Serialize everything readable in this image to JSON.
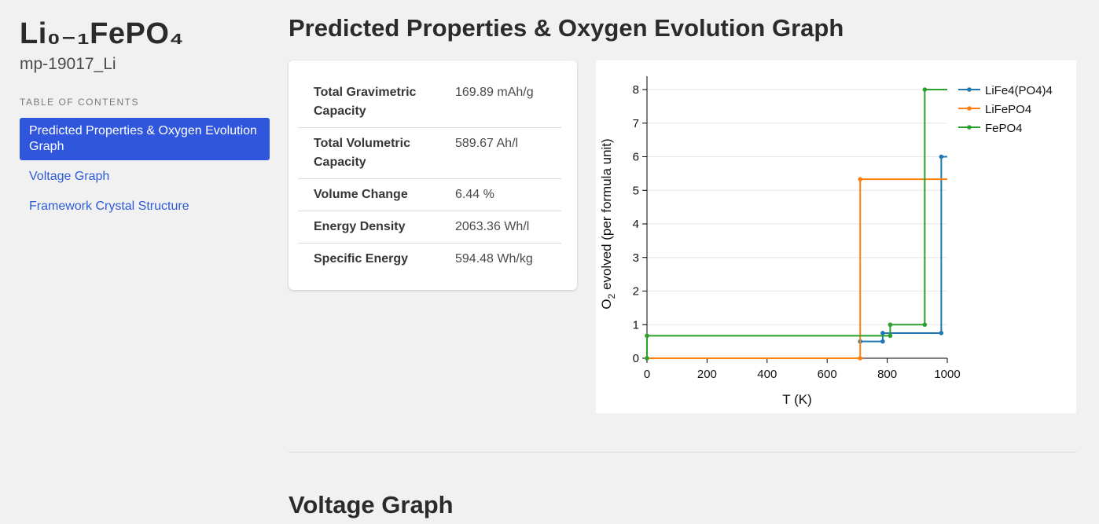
{
  "sidebar": {
    "title": "Li₀₋₁FePO₄",
    "material_id": "mp-19017_Li",
    "toc_heading": "TABLE OF CONTENTS",
    "toc": [
      {
        "label": "Predicted Properties & Oxygen Evolution Graph",
        "active": true
      },
      {
        "label": "Voltage Graph",
        "active": false
      },
      {
        "label": "Framework Crystal Structure",
        "active": false
      }
    ]
  },
  "main": {
    "section1_title": "Predicted Properties & Oxygen Evolution Graph",
    "properties": [
      {
        "label": "Total Gravimetric Capacity",
        "value": "169.89 mAh/g"
      },
      {
        "label": "Total Volumetric Capacity",
        "value": "589.67 Ah/l"
      },
      {
        "label": "Volume Change",
        "value": "6.44 %"
      },
      {
        "label": "Energy Density",
        "value": "2063.36 Wh/l"
      },
      {
        "label": "Specific Energy",
        "value": "594.48 Wh/kg"
      }
    ],
    "section2_title": "Voltage Graph"
  },
  "chart_data": {
    "type": "line",
    "step": true,
    "xlabel": "T (K)",
    "ylabel_main": "O",
    "ylabel_sub": "2",
    "ylabel_rest": " evolved (per formula unit)",
    "xlim": [
      0,
      1000
    ],
    "ylim": [
      0,
      8
    ],
    "xticks": [
      0,
      200,
      400,
      600,
      800,
      1000
    ],
    "yticks": [
      0,
      1,
      2,
      3,
      4,
      5,
      6,
      7,
      8
    ],
    "grid": "horizontal",
    "legend_position": "top-right",
    "series": [
      {
        "name": "LiFe4(PO4)4",
        "color": "#1f77b4",
        "points": [
          [
            710,
            0.5
          ],
          [
            785,
            0.5
          ],
          [
            785,
            0.75
          ],
          [
            980,
            0.75
          ],
          [
            980,
            6.0
          ],
          [
            1000,
            6.0
          ]
        ]
      },
      {
        "name": "LiFePO4",
        "color": "#ff7f0e",
        "points": [
          [
            0,
            0
          ],
          [
            710,
            0
          ],
          [
            710,
            5.33
          ],
          [
            1000,
            5.33
          ]
        ]
      },
      {
        "name": "FePO4",
        "color": "#2ca02c",
        "points": [
          [
            0,
            0
          ],
          [
            0,
            0.67
          ],
          [
            810,
            0.67
          ],
          [
            810,
            1.0
          ],
          [
            925,
            1.0
          ],
          [
            925,
            8.0
          ],
          [
            1000,
            8.0
          ]
        ]
      }
    ]
  }
}
